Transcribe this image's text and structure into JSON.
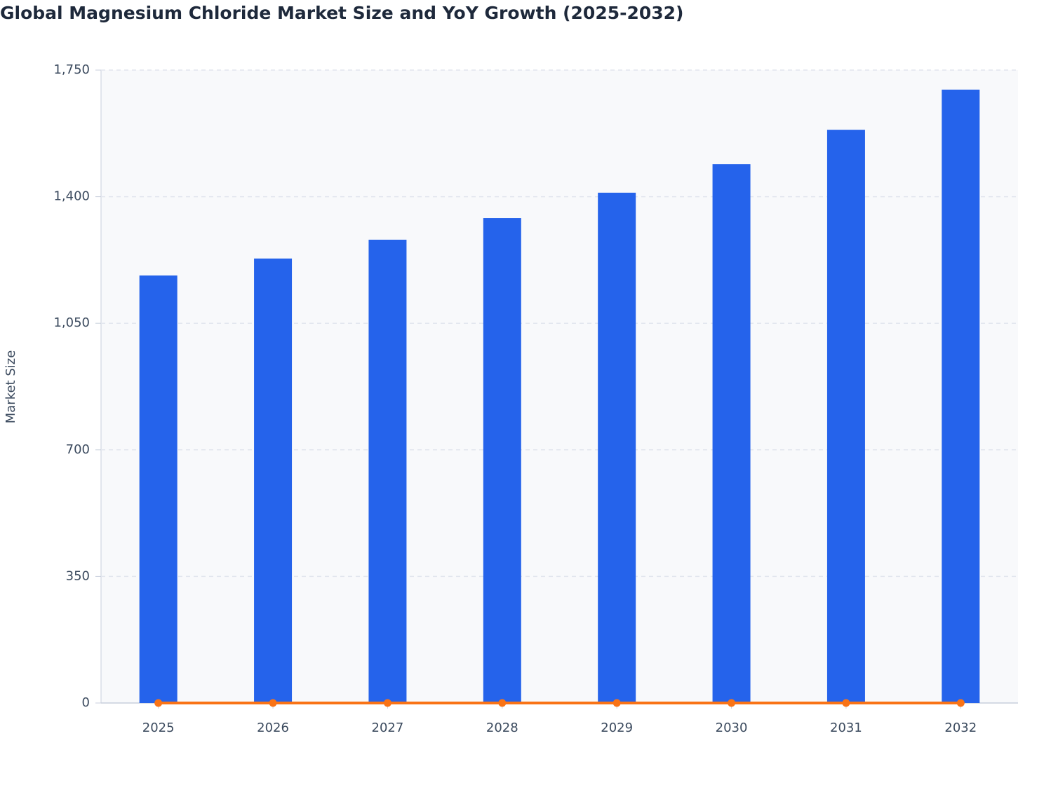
{
  "chart_data": {
    "type": "bar",
    "title": "Global Magnesium Chloride Market Size and YoY Growth (2025-2032)",
    "y_label": "Market Size",
    "categories": [
      "2025",
      "2026",
      "2027",
      "2028",
      "2029",
      "2030",
      "2031",
      "2032"
    ],
    "series": [
      {
        "type": "bar",
        "color": "#2563eb",
        "values": [
          1182,
          1229,
          1281,
          1341,
          1411,
          1490,
          1585,
          1696
        ]
      },
      {
        "type": "line",
        "color": "#f97316",
        "values": [
          0,
          0,
          0,
          0,
          0,
          0,
          0,
          0
        ]
      }
    ],
    "ylim": [
      0,
      1750
    ],
    "yticks": [
      0,
      350,
      700,
      {
        "value": 1050,
        "label": "1,050"
      },
      {
        "value": 1400,
        "label": "1,400"
      },
      {
        "value": 1750,
        "label": "1,750"
      }
    ],
    "grid": true
  }
}
